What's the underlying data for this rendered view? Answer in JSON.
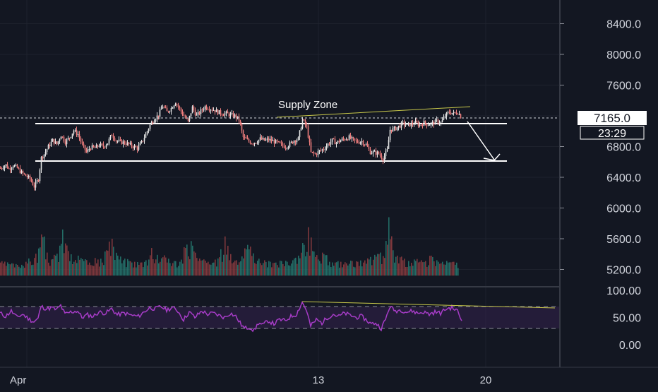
{
  "chart_data": [
    {
      "type": "candlestick",
      "title": "",
      "y_ticks": [
        "8400.0",
        "8000.0",
        "7600.0",
        "7200.0",
        "6800.0",
        "6400.0",
        "6000.0",
        "5600.0",
        "5200.0"
      ],
      "y_tick_values": [
        8400,
        8000,
        7600,
        7200,
        6800,
        6400,
        6000,
        5600,
        5200
      ],
      "x_ticks": [
        "Apr",
        "13",
        "20"
      ],
      "last_price": "7165.0",
      "countdown": "23:29",
      "price_path": [
        [
          0,
          6520
        ],
        [
          8,
          6560
        ],
        [
          12,
          6510
        ],
        [
          18,
          6555
        ],
        [
          24,
          6520
        ],
        [
          30,
          6460
        ],
        [
          36,
          6420
        ],
        [
          42,
          6380
        ],
        [
          48,
          6280
        ],
        [
          54,
          6380
        ],
        [
          58,
          6650
        ],
        [
          62,
          6700
        ],
        [
          68,
          6800
        ],
        [
          74,
          6880
        ],
        [
          80,
          6830
        ],
        [
          86,
          6950
        ],
        [
          92,
          6860
        ],
        [
          98,
          6920
        ],
        [
          104,
          7010
        ],
        [
          110,
          6960
        ],
        [
          116,
          6820
        ],
        [
          122,
          6730
        ],
        [
          128,
          6790
        ],
        [
          134,
          6780
        ],
        [
          140,
          6820
        ],
        [
          146,
          6800
        ],
        [
          152,
          6850
        ],
        [
          158,
          6960
        ],
        [
          164,
          6880
        ],
        [
          170,
          6860
        ],
        [
          176,
          6850
        ],
        [
          182,
          6830
        ],
        [
          188,
          6800
        ],
        [
          194,
          6780
        ],
        [
          200,
          6850
        ],
        [
          206,
          6960
        ],
        [
          212,
          7080
        ],
        [
          218,
          7160
        ],
        [
          224,
          7210
        ],
        [
          230,
          7330
        ],
        [
          236,
          7250
        ],
        [
          242,
          7300
        ],
        [
          248,
          7380
        ],
        [
          254,
          7290
        ],
        [
          260,
          7200
        ],
        [
          266,
          7120
        ],
        [
          272,
          7310
        ],
        [
          278,
          7200
        ],
        [
          284,
          7260
        ],
        [
          290,
          7320
        ],
        [
          296,
          7300
        ],
        [
          302,
          7280
        ],
        [
          308,
          7250
        ],
        [
          314,
          7230
        ],
        [
          320,
          7230
        ],
        [
          326,
          7210
        ],
        [
          332,
          7200
        ],
        [
          338,
          7150
        ],
        [
          344,
          6920
        ],
        [
          350,
          6880
        ],
        [
          356,
          6850
        ],
        [
          362,
          6860
        ],
        [
          368,
          6900
        ],
        [
          374,
          6880
        ],
        [
          380,
          6890
        ],
        [
          386,
          6870
        ],
        [
          392,
          6850
        ],
        [
          398,
          6820
        ],
        [
          404,
          6800
        ],
        [
          410,
          6830
        ],
        [
          416,
          6880
        ],
        [
          422,
          6900
        ],
        [
          428,
          7150
        ],
        [
          434,
          7050
        ],
        [
          440,
          6720
        ],
        [
          446,
          6700
        ],
        [
          452,
          6740
        ],
        [
          458,
          6770
        ],
        [
          464,
          6830
        ],
        [
          470,
          6880
        ],
        [
          476,
          6850
        ],
        [
          482,
          6880
        ],
        [
          488,
          6900
        ],
        [
          494,
          6920
        ],
        [
          500,
          6880
        ],
        [
          506,
          6860
        ],
        [
          512,
          6870
        ],
        [
          518,
          6820
        ],
        [
          524,
          6730
        ],
        [
          530,
          6720
        ],
        [
          536,
          6710
        ],
        [
          542,
          6640
        ],
        [
          548,
          6750
        ],
        [
          552,
          7020
        ],
        [
          558,
          7030
        ],
        [
          564,
          7060
        ],
        [
          570,
          7100
        ],
        [
          576,
          7080
        ],
        [
          582,
          7090
        ],
        [
          588,
          7110
        ],
        [
          594,
          7080
        ],
        [
          600,
          7110
        ],
        [
          606,
          7090
        ],
        [
          612,
          7100
        ],
        [
          618,
          7130
        ],
        [
          624,
          7110
        ],
        [
          630,
          7200
        ],
        [
          636,
          7250
        ],
        [
          642,
          7230
        ],
        [
          648,
          7250
        ],
        [
          654,
          7165
        ]
      ],
      "volume": [
        [
          0,
          5290
        ],
        [
          12,
          5270
        ],
        [
          24,
          5260
        ],
        [
          36,
          5300
        ],
        [
          48,
          5350
        ],
        [
          60,
          5620
        ],
        [
          66,
          5420
        ],
        [
          72,
          5330
        ],
        [
          78,
          5380
        ],
        [
          84,
          5510
        ],
        [
          88,
          5720
        ],
        [
          96,
          5440
        ],
        [
          104,
          5300
        ],
        [
          110,
          5380
        ],
        [
          118,
          5310
        ],
        [
          126,
          5290
        ],
        [
          134,
          5350
        ],
        [
          142,
          5340
        ],
        [
          150,
          5450
        ],
        [
          158,
          5600
        ],
        [
          166,
          5380
        ],
        [
          174,
          5320
        ],
        [
          182,
          5310
        ],
        [
          190,
          5300
        ],
        [
          198,
          5290
        ],
        [
          206,
          5320
        ],
        [
          214,
          5480
        ],
        [
          222,
          5390
        ],
        [
          230,
          5360
        ],
        [
          238,
          5340
        ],
        [
          246,
          5310
        ],
        [
          254,
          5300
        ],
        [
          262,
          5480
        ],
        [
          270,
          5570
        ],
        [
          278,
          5350
        ],
        [
          286,
          5320
        ],
        [
          294,
          5300
        ],
        [
          302,
          5290
        ],
        [
          310,
          5360
        ],
        [
          318,
          5630
        ],
        [
          326,
          5400
        ],
        [
          334,
          5320
        ],
        [
          342,
          5370
        ],
        [
          350,
          5520
        ],
        [
          358,
          5410
        ],
        [
          366,
          5340
        ],
        [
          374,
          5320
        ],
        [
          382,
          5300
        ],
        [
          390,
          5290
        ],
        [
          398,
          5310
        ],
        [
          406,
          5300
        ],
        [
          414,
          5320
        ],
        [
          422,
          5380
        ],
        [
          430,
          5520
        ],
        [
          436,
          5750
        ],
        [
          442,
          5440
        ],
        [
          450,
          5330
        ],
        [
          458,
          5400
        ],
        [
          466,
          5300
        ],
        [
          474,
          5290
        ],
        [
          482,
          5300
        ],
        [
          490,
          5280
        ],
        [
          498,
          5310
        ],
        [
          506,
          5300
        ],
        [
          514,
          5290
        ],
        [
          522,
          5330
        ],
        [
          530,
          5390
        ],
        [
          538,
          5420
        ],
        [
          544,
          5350
        ],
        [
          550,
          5880
        ],
        [
          556,
          5450
        ],
        [
          562,
          5380
        ],
        [
          570,
          5320
        ],
        [
          578,
          5310
        ],
        [
          586,
          5330
        ],
        [
          594,
          5300
        ],
        [
          602,
          5310
        ],
        [
          610,
          5380
        ],
        [
          618,
          5320
        ],
        [
          626,
          5300
        ],
        [
          634,
          5290
        ],
        [
          642,
          5300
        ],
        [
          650,
          5280
        ]
      ],
      "rsi_ticks": [
        "100.00",
        "50.00",
        "0.00"
      ],
      "rsi_tick_values": [
        100,
        50,
        0
      ],
      "rsi_band": [
        30,
        70
      ],
      "rsi_path": [
        [
          0,
          58
        ],
        [
          8,
          52
        ],
        [
          16,
          62
        ],
        [
          24,
          50
        ],
        [
          32,
          56
        ],
        [
          40,
          48
        ],
        [
          48,
          42
        ],
        [
          54,
          48
        ],
        [
          58,
          70
        ],
        [
          66,
          66
        ],
        [
          74,
          68
        ],
        [
          80,
          64
        ],
        [
          86,
          72
        ],
        [
          92,
          56
        ],
        [
          100,
          60
        ],
        [
          110,
          62
        ],
        [
          116,
          50
        ],
        [
          124,
          55
        ],
        [
          132,
          52
        ],
        [
          140,
          60
        ],
        [
          150,
          58
        ],
        [
          158,
          66
        ],
        [
          166,
          55
        ],
        [
          176,
          58
        ],
        [
          186,
          54
        ],
        [
          196,
          52
        ],
        [
          206,
          62
        ],
        [
          212,
          68
        ],
        [
          220,
          66
        ],
        [
          228,
          70
        ],
        [
          236,
          64
        ],
        [
          244,
          68
        ],
        [
          252,
          62
        ],
        [
          260,
          46
        ],
        [
          268,
          60
        ],
        [
          276,
          50
        ],
        [
          286,
          62
        ],
        [
          294,
          56
        ],
        [
          302,
          58
        ],
        [
          310,
          54
        ],
        [
          318,
          50
        ],
        [
          326,
          58
        ],
        [
          334,
          52
        ],
        [
          340,
          40
        ],
        [
          346,
          30
        ],
        [
          354,
          32
        ],
        [
          360,
          26
        ],
        [
          366,
          40
        ],
        [
          372,
          36
        ],
        [
          380,
          44
        ],
        [
          388,
          38
        ],
        [
          396,
          46
        ],
        [
          404,
          44
        ],
        [
          412,
          52
        ],
        [
          420,
          56
        ],
        [
          428,
          78
        ],
        [
          434,
          64
        ],
        [
          440,
          34
        ],
        [
          448,
          46
        ],
        [
          456,
          40
        ],
        [
          464,
          50
        ],
        [
          472,
          56
        ],
        [
          480,
          52
        ],
        [
          488,
          58
        ],
        [
          496,
          54
        ],
        [
          504,
          50
        ],
        [
          512,
          52
        ],
        [
          520,
          44
        ],
        [
          526,
          38
        ],
        [
          532,
          40
        ],
        [
          540,
          30
        ],
        [
          546,
          46
        ],
        [
          552,
          70
        ],
        [
          560,
          62
        ],
        [
          568,
          64
        ],
        [
          576,
          60
        ],
        [
          584,
          62
        ],
        [
          592,
          58
        ],
        [
          600,
          60
        ],
        [
          608,
          56
        ],
        [
          616,
          60
        ],
        [
          624,
          58
        ],
        [
          632,
          66
        ],
        [
          640,
          68
        ],
        [
          648,
          62
        ],
        [
          654,
          44
        ]
      ]
    }
  ],
  "annotations": {
    "supply_zone_label": "Supply Zone"
  }
}
